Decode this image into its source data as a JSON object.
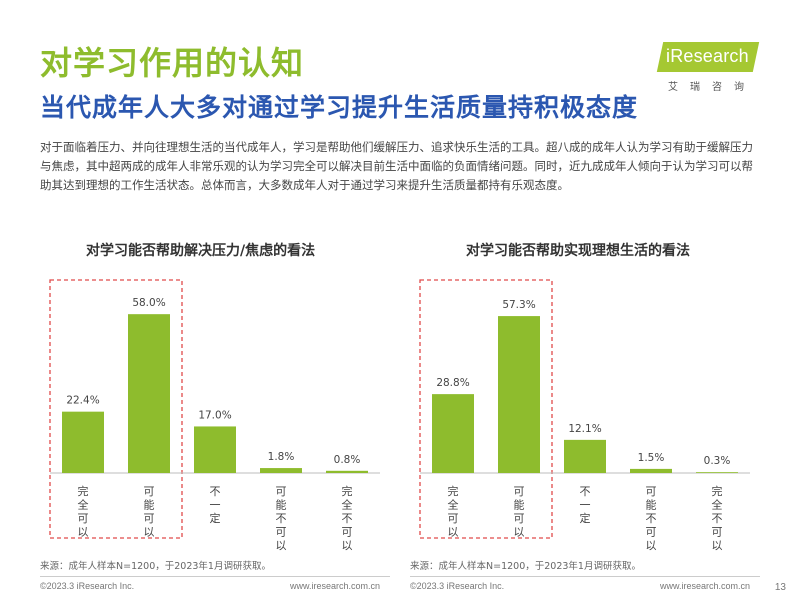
{
  "header": {
    "title": "对学习作用的认知",
    "subtitle": "当代成年人大多对通过学习提升生活质量持积极态度"
  },
  "brand": {
    "logo_text": "iResearch",
    "logo_cn": "艾瑞咨询"
  },
  "description": "对于面临着压力、并向往理想生活的当代成年人，学习是帮助他们缓解压力、追求快乐生活的工具。超八成的成年人认为学习有助于缓解压力与焦虑，其中超两成的成年人非常乐观的认为学习完全可以解决目前生活中面临的负面情绪问题。同时，近九成成年人倾向于认为学习可以帮助其达到理想的工作生活状态。总体而言，大多数成年人对于通过学习来提升生活质量都持有乐观态度。",
  "colors": {
    "bar": "#8ebc2d",
    "title": "#8ebc2d",
    "subtitle": "#2b57b0",
    "highlight_border": "#e04a4a"
  },
  "chart_data": [
    {
      "type": "bar",
      "title": "对学习能否帮助解决压力/焦虑的看法",
      "categories": [
        "完全可以",
        "可能可以",
        "不一定",
        "可能不可以",
        "完全不可以"
      ],
      "values": [
        22.4,
        58.0,
        17.0,
        1.8,
        0.8
      ],
      "value_labels": [
        "22.4%",
        "58.0%",
        "17.0%",
        "1.8%",
        "0.8%"
      ],
      "highlighted_categories": [
        "完全可以",
        "可能可以"
      ],
      "ylim": [
        0,
        65
      ],
      "grid": false,
      "source": "来源：成年人样本N=1200，于2023年1月调研获取。"
    },
    {
      "type": "bar",
      "title": "对学习能否帮助实现理想生活的看法",
      "categories": [
        "完全可以",
        "可能可以",
        "不一定",
        "可能不可以",
        "完全不可以"
      ],
      "values": [
        28.8,
        57.3,
        12.1,
        1.5,
        0.3
      ],
      "value_labels": [
        "28.8%",
        "57.3%",
        "12.1%",
        "1.5%",
        "0.3%"
      ],
      "highlighted_categories": [
        "完全可以",
        "可能可以"
      ],
      "ylim": [
        0,
        65
      ],
      "grid": false,
      "source": "来源：成年人样本N=1200，于2023年1月调研获取。"
    }
  ],
  "footer": {
    "copyright": "©2023.3 iResearch Inc.",
    "website": "www.iresearch.com.cn",
    "page_number": "13"
  }
}
